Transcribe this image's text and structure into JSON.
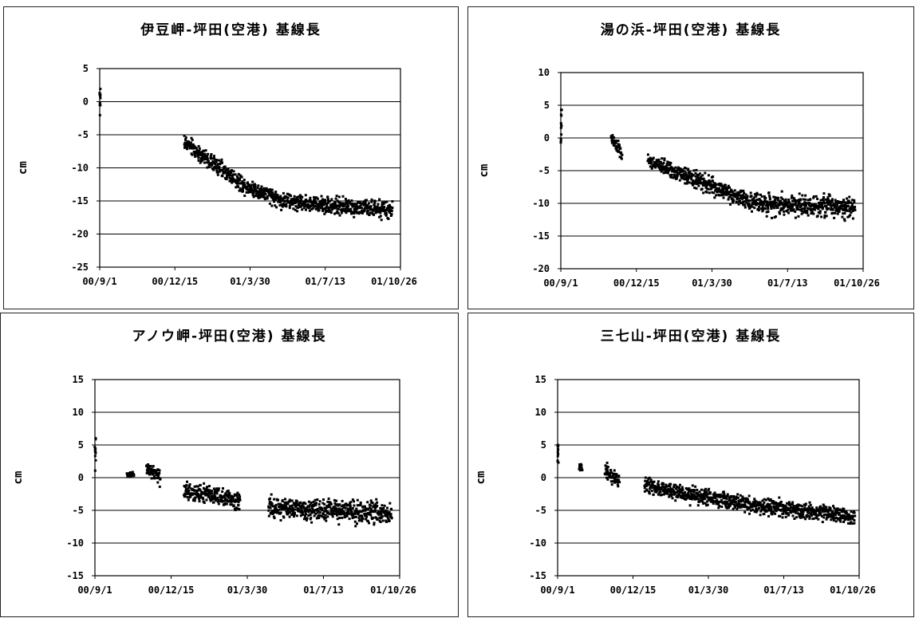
{
  "chart_data": [
    {
      "type": "scatter",
      "title": "伊豆岬-坪田(空港) 基線長",
      "ylabel": "cm",
      "xlabel": "",
      "ylim": [
        -25,
        5
      ],
      "yticks": [
        5,
        0,
        -5,
        -10,
        -15,
        -20,
        -25
      ],
      "xticks": [
        "00/9/1",
        "00/12/15",
        "01/3/30",
        "01/7/13",
        "01/10/26"
      ],
      "x_range_days_from_00_9_1": [
        0,
        420
      ],
      "grid": "horizontal",
      "segments": [
        {
          "x_start": "00/9/1",
          "x_end": "00/9/2",
          "y_start": 0,
          "y_end": 0.5,
          "spread": 2.2
        },
        {
          "x_start": "00/12/28",
          "x_end": "01/1/20",
          "y_start": -6,
          "y_end": -8,
          "spread": 1.0
        },
        {
          "x_start": "01/1/20",
          "x_end": "01/3/20",
          "y_start": -8,
          "y_end": -12.5,
          "spread": 1.0
        },
        {
          "x_start": "01/3/20",
          "x_end": "01/5/15",
          "y_start": -12.5,
          "y_end": -15,
          "spread": 1.0
        },
        {
          "x_start": "01/5/15",
          "x_end": "01/10/15",
          "y_start": -15,
          "y_end": -16.5,
          "spread": 1.0
        }
      ]
    },
    {
      "type": "scatter",
      "title": "湯の浜-坪田(空港) 基線長",
      "ylabel": "cm",
      "xlabel": "",
      "ylim": [
        -20,
        10
      ],
      "yticks": [
        10,
        5,
        0,
        -5,
        -10,
        -15,
        -20
      ],
      "xticks": [
        "00/9/1",
        "00/12/15",
        "01/3/30",
        "01/7/13",
        "01/10/26"
      ],
      "x_range_days_from_00_9_1": [
        0,
        420
      ],
      "grid": "horizontal",
      "segments": [
        {
          "x_start": "00/9/1",
          "x_end": "00/9/2",
          "y_start": 1,
          "y_end": 1.5,
          "spread": 2.5
        },
        {
          "x_start": "00/11/10",
          "x_end": "00/11/25",
          "y_start": 0,
          "y_end": -2.5,
          "spread": 0.8
        },
        {
          "x_start": "00/12/31",
          "x_end": "01/3/10",
          "y_start": -3.5,
          "y_end": -6.5,
          "spread": 0.9
        },
        {
          "x_start": "01/3/10",
          "x_end": "01/5/30",
          "y_start": -6.5,
          "y_end": -10,
          "spread": 1.0
        },
        {
          "x_start": "01/5/30",
          "x_end": "01/10/15",
          "y_start": -10,
          "y_end": -10.5,
          "spread": 1.3
        }
      ]
    },
    {
      "type": "scatter",
      "title": "アノウ岬-坪田(空港) 基線長",
      "ylabel": "cm",
      "xlabel": "",
      "ylim": [
        -15,
        15
      ],
      "yticks": [
        15,
        10,
        5,
        0,
        -5,
        -10,
        -15
      ],
      "xticks": [
        "00/9/1",
        "00/12/15",
        "01/3/30",
        "01/7/13",
        "01/10/26"
      ],
      "x_range_days_from_00_9_1": [
        0,
        420
      ],
      "grid": "horizontal",
      "segments": [
        {
          "x_start": "00/9/1",
          "x_end": "00/9/2",
          "y_start": 3.5,
          "y_end": 3.5,
          "spread": 1.6
        },
        {
          "x_start": "00/10/15",
          "x_end": "00/10/25",
          "y_start": 0.5,
          "y_end": 0.5,
          "spread": 0.3
        },
        {
          "x_start": "00/11/11",
          "x_end": "00/11/30",
          "y_start": 1.5,
          "y_end": 0,
          "spread": 1.0
        },
        {
          "x_start": "01/1/2",
          "x_end": "01/3/20",
          "y_start": -2,
          "y_end": -3.5,
          "spread": 1.2
        },
        {
          "x_start": "01/4/28",
          "x_end": "01/10/15",
          "y_start": -4.5,
          "y_end": -5.5,
          "spread": 1.3
        }
      ]
    },
    {
      "type": "scatter",
      "title": "三七山-坪田(空港) 基線長",
      "ylabel": "cm",
      "xlabel": "",
      "ylim": [
        -15,
        15
      ],
      "yticks": [
        15,
        10,
        5,
        0,
        -5,
        -10,
        -15
      ],
      "xticks": [
        "00/9/1",
        "00/12/15",
        "01/3/30",
        "01/7/13",
        "01/10/26"
      ],
      "x_range_days_from_00_9_1": [
        0,
        420
      ],
      "grid": "horizontal",
      "segments": [
        {
          "x_start": "00/9/1",
          "x_end": "00/9/2",
          "y_start": 3.5,
          "y_end": 3.5,
          "spread": 1.5
        },
        {
          "x_start": "00/10/1",
          "x_end": "00/10/5",
          "y_start": 1.5,
          "y_end": 1.5,
          "spread": 0.8
        },
        {
          "x_start": "00/11/6",
          "x_end": "00/11/26",
          "y_start": 1,
          "y_end": -0.5,
          "spread": 0.9
        },
        {
          "x_start": "00/12/31",
          "x_end": "01/1/30",
          "y_start": -1,
          "y_end": -2,
          "spread": 0.9
        },
        {
          "x_start": "01/1/30",
          "x_end": "01/5/20",
          "y_start": -2,
          "y_end": -4,
          "spread": 1.0
        },
        {
          "x_start": "01/5/20",
          "x_end": "01/10/20",
          "y_start": -4,
          "y_end": -6,
          "spread": 1.0
        }
      ]
    }
  ]
}
